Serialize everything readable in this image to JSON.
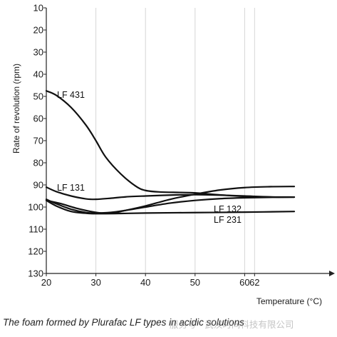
{
  "chart_data": {
    "type": "line",
    "title": "",
    "ylabel": "Rate of revolution (rpm)",
    "xlabel": "Temperature (°C)",
    "xlim": [
      20,
      70
    ],
    "ylim": [
      10,
      130
    ],
    "y_inverted": true,
    "x_ticks": [
      20,
      30,
      40,
      50,
      60,
      62
    ],
    "y_ticks": [
      10,
      20,
      30,
      40,
      50,
      60,
      70,
      80,
      90,
      100,
      110,
      120,
      130
    ],
    "grid": true,
    "series": [
      {
        "name": "LF 431",
        "color": "#111111",
        "x": [
          20,
          22,
          25,
          28,
          30,
          32,
          35,
          38,
          40,
          43,
          47,
          50,
          55,
          60,
          65,
          70
        ],
        "y": [
          47.5,
          49.5,
          55,
          63,
          70,
          77.5,
          85,
          90.5,
          92.5,
          93.2,
          93.4,
          93.6,
          94.5,
          95.2,
          95.5,
          95.5
        ]
      },
      {
        "name": "LF 131",
        "color": "#111111",
        "x": [
          20,
          22,
          25,
          28,
          30,
          33,
          36,
          40,
          45,
          50,
          55,
          60,
          65,
          70
        ],
        "y": [
          91,
          93,
          95,
          96.3,
          96.5,
          96,
          95.4,
          95,
          94.6,
          94.4,
          94.6,
          95,
          95.4,
          95.5
        ]
      },
      {
        "name": "LF 132",
        "color": "#111111",
        "x": [
          20,
          22,
          25,
          28,
          30,
          33,
          36,
          40,
          45,
          50,
          55,
          60,
          65,
          70
        ],
        "y": [
          96.5,
          98.5,
          101,
          102.5,
          102.7,
          102.4,
          101.5,
          100,
          98.2,
          97,
          96.2,
          95.8,
          95.6,
          95.5
        ]
      },
      {
        "name": "LF 231",
        "color": "#111111",
        "x": [
          20,
          22,
          25,
          28,
          30,
          35,
          40,
          50,
          60,
          70
        ],
        "y": [
          97,
          99.5,
          102,
          102.8,
          103,
          102.9,
          102.7,
          102.5,
          102.3,
          102
        ]
      },
      {
        "name": "",
        "color": "#111111",
        "x": [
          20,
          23,
          26,
          30,
          33,
          36,
          40,
          45,
          50,
          55,
          60,
          65,
          70
        ],
        "y": [
          97,
          98.5,
          100.5,
          102.4,
          102.8,
          101.5,
          99.5,
          96.5,
          94.2,
          92.3,
          91.2,
          90.8,
          90.7
        ]
      }
    ]
  },
  "caption": "The foam formed by Plurafac LF types in acidic solutions",
  "watermark": "服务号 · 武汉时间科技有限公司"
}
